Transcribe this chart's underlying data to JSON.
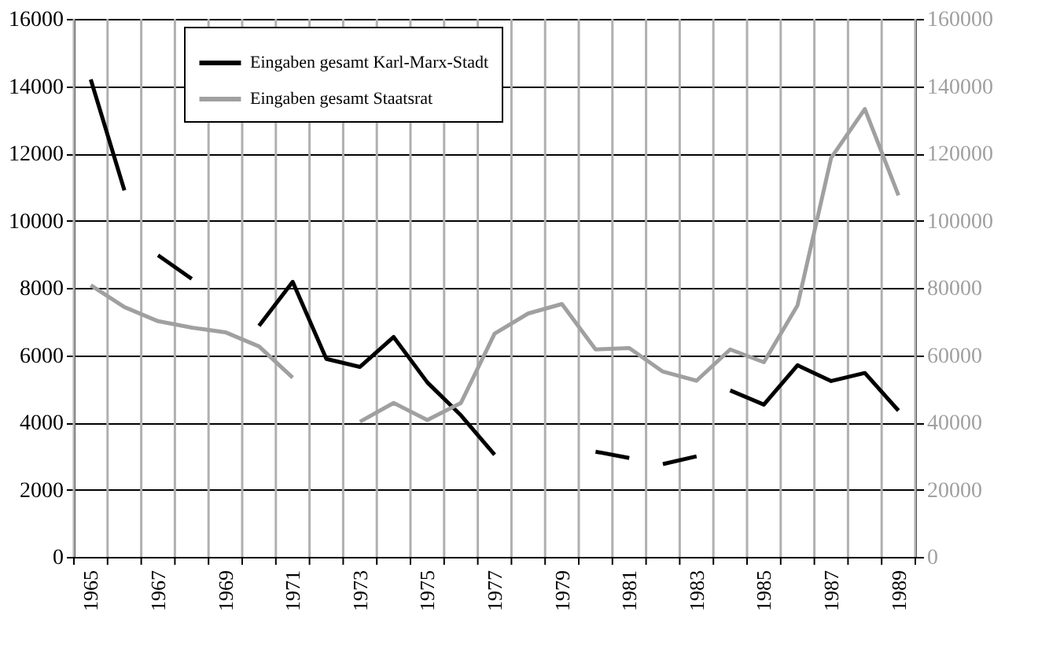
{
  "chart_data": {
    "type": "line",
    "categories": [
      "1965",
      null,
      "1967",
      null,
      "1969",
      null,
      "1971",
      null,
      "1973",
      null,
      "1975",
      null,
      "1977",
      null,
      "1979",
      null,
      "1981",
      null,
      "1983",
      null,
      "1985",
      null,
      "1987",
      null,
      "1989"
    ],
    "ylim": [
      0,
      16000
    ],
    "yticks": [
      0,
      2000,
      4000,
      6000,
      8000,
      10000,
      12000,
      14000,
      16000
    ],
    "y2lim": [
      0,
      160000
    ],
    "y2ticks": [
      0,
      20000,
      40000,
      60000,
      80000,
      100000,
      120000,
      140000,
      160000
    ],
    "grid": true,
    "legend": "top left",
    "line_style": "solid",
    "series": [
      {
        "name": "Eingaben gesamt Karl-Marx-Stadt",
        "color": "#000000",
        "values": [
          14200,
          10900,
          null,
          null,
          null,
          6870,
          8180,
          5890,
          5650,
          6540,
          5190,
          4210,
          3040,
          null,
          null,
          3130,
          2940,
          null,
          null,
          4950,
          4530,
          5700,
          5230,
          5470,
          4350
        ]
      },
      {
        "color": "#000000",
        "values": [
          null,
          null,
          8970,
          8270,
          null,
          null,
          null,
          null,
          null,
          null,
          null,
          null,
          null,
          null,
          null,
          null,
          null,
          2760,
          2990,
          null,
          null,
          null,
          null,
          null,
          null
        ]
      },
      {
        "name": "Eingaben gesamt  Staatsrat",
        "color": "#a0a0a0",
        "axis": "y2",
        "values": [
          80800,
          74300,
          70100,
          68200,
          66800,
          62600,
          53300,
          null,
          40200,
          45800,
          40700,
          45800,
          66400,
          72400,
          75200,
          61700,
          62100,
          55100,
          52400,
          61700,
          57900,
          74800,
          118700,
          133200,
          107500
        ]
      }
    ]
  }
}
